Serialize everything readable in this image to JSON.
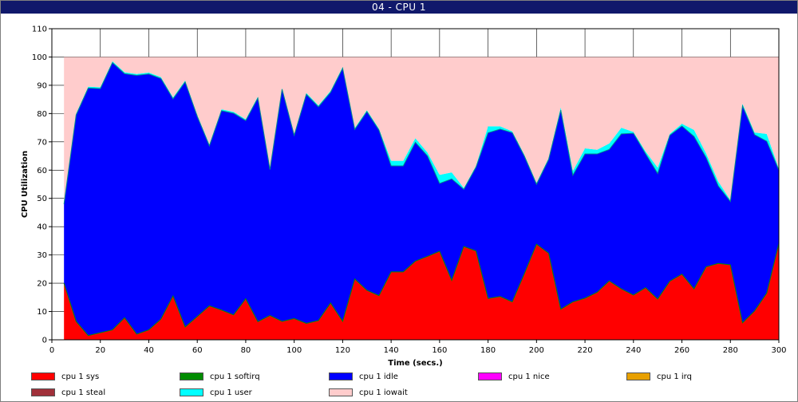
{
  "window": {
    "title": "04 - CPU 1"
  },
  "chart_data": {
    "type": "area",
    "stacked": true,
    "title": "04 - CPU 1",
    "xlabel": "Time (secs.)",
    "ylabel": "CPU Utilization",
    "xlim": [
      0,
      300
    ],
    "ylim": [
      0,
      110
    ],
    "xticks": [
      0,
      20,
      40,
      60,
      80,
      100,
      120,
      140,
      160,
      180,
      200,
      220,
      240,
      260,
      280,
      300
    ],
    "yticks": [
      0,
      10,
      20,
      30,
      40,
      50,
      60,
      70,
      80,
      90,
      100,
      110
    ],
    "grid": true,
    "legend_position": "bottom",
    "x": [
      5,
      10,
      15,
      20,
      25,
      30,
      35,
      40,
      45,
      50,
      55,
      60,
      65,
      70,
      75,
      80,
      85,
      90,
      95,
      100,
      105,
      110,
      115,
      120,
      125,
      130,
      135,
      140,
      145,
      150,
      155,
      160,
      165,
      170,
      175,
      180,
      185,
      190,
      195,
      200,
      205,
      210,
      215,
      220,
      225,
      230,
      235,
      240,
      245,
      250,
      255,
      260,
      265,
      270,
      275,
      280,
      285,
      290,
      295,
      300
    ],
    "series": [
      {
        "name": "cpu 1 sys",
        "color": "#ff0000",
        "values": [
          20,
          6.5,
          1.5,
          2.5,
          3.5,
          7.8,
          2,
          3.5,
          7.3,
          15.5,
          4.5,
          8.2,
          12,
          10.5,
          8.8,
          14.5,
          6.4,
          8.6,
          6.5,
          7.5,
          5.8,
          6.8,
          13,
          6.5,
          21.5,
          17.5,
          15.6,
          24,
          24,
          27.8,
          29.5,
          31.3,
          21,
          33,
          31.4,
          14.6,
          15.3,
          13.4,
          23.4,
          33.8,
          30.6,
          10.8,
          13.4,
          14.7,
          16.8,
          20.8,
          18,
          15.8,
          18.4,
          14.4,
          20.7,
          23.2,
          18,
          25.8,
          27,
          26.5,
          6,
          10.2,
          16.5,
          34
        ]
      },
      {
        "name": "cpu 1 softirq",
        "color": "#008c00",
        "values": [
          0,
          0,
          0,
          0,
          0,
          0,
          0,
          0,
          0,
          0,
          0,
          0,
          0,
          0,
          0,
          0,
          0,
          0,
          0,
          0,
          0,
          0,
          0,
          0,
          0,
          0,
          0,
          0,
          0,
          0,
          0,
          0,
          0,
          0,
          0,
          0,
          0,
          0,
          0,
          0,
          0,
          0,
          0,
          0,
          0,
          0,
          0,
          0,
          0,
          0,
          0,
          0,
          0,
          0,
          0,
          0,
          0,
          0,
          0,
          0
        ]
      },
      {
        "name": "cpu 1 idle",
        "color": "#0000ff",
        "values": [
          28,
          73,
          87.5,
          86.3,
          94.5,
          86.3,
          91.5,
          90.5,
          85.1,
          69.7,
          86.7,
          70.8,
          56.6,
          70.5,
          71.3,
          63,
          79.1,
          51.6,
          82.1,
          64.8,
          81,
          75.6,
          74.5,
          89.5,
          52.9,
          63.2,
          58.5,
          37.5,
          37.5,
          42,
          35.5,
          24,
          35.9,
          20.2,
          29.6,
          58.6,
          59.2,
          59.8,
          41.5,
          21.2,
          33.2,
          70.4,
          44.8,
          51,
          48.9,
          46.5,
          54.8,
          57.2,
          47.4,
          44.4,
          51.6,
          52.4,
          53.9,
          38.6,
          27.4,
          22.4,
          76.7,
          62.3,
          53.7,
          26
        ]
      },
      {
        "name": "cpu 1 nice",
        "color": "#ff00ff",
        "values": [
          0,
          0,
          0,
          0,
          0,
          0,
          0,
          0,
          0,
          0,
          0,
          0,
          0,
          0,
          0,
          0,
          0,
          0,
          0,
          0,
          0,
          0,
          0,
          0,
          0,
          0,
          0,
          0,
          0,
          0,
          0,
          0,
          0,
          0,
          0,
          0,
          0,
          0,
          0,
          0,
          0,
          0,
          0,
          0,
          0,
          0,
          0,
          0,
          0,
          0,
          0,
          0,
          0,
          0,
          0,
          0,
          0,
          0,
          0,
          0
        ]
      },
      {
        "name": "cpu 1 irq",
        "color": "#e8a000",
        "values": [
          0,
          0,
          0,
          0,
          0,
          0,
          0,
          0,
          0,
          0,
          0,
          0,
          0,
          0,
          0,
          0,
          0,
          0,
          0,
          0,
          0,
          0,
          0,
          0,
          0,
          0,
          0,
          0,
          0,
          0,
          0,
          0,
          0,
          0,
          0,
          0,
          0,
          0,
          0,
          0,
          0,
          0,
          0,
          0,
          0,
          0,
          0,
          0,
          0,
          0,
          0,
          0,
          0,
          0,
          0,
          0,
          0,
          0,
          0,
          0
        ]
      },
      {
        "name": "cpu 1 steal",
        "color": "#a0303a",
        "values": [
          0,
          0,
          0,
          0,
          0,
          0,
          0,
          0,
          0,
          0,
          0,
          0,
          0,
          0,
          0,
          0,
          0,
          0,
          0,
          0,
          0,
          0,
          0,
          0,
          0,
          0,
          0,
          0,
          0,
          0,
          0,
          0,
          0,
          0,
          0,
          0,
          0,
          0,
          0,
          0,
          0,
          0,
          0,
          0,
          0,
          0,
          0,
          0,
          0,
          0,
          0,
          0,
          0,
          0,
          0,
          0,
          0,
          0,
          0,
          0
        ]
      },
      {
        "name": "cpu 1 user",
        "color": "#00ffff",
        "values": [
          0.3,
          0.5,
          0.5,
          0.5,
          0.5,
          0.5,
          0.5,
          0.5,
          0.5,
          0.5,
          0.5,
          0.5,
          0.5,
          0.5,
          0.5,
          0.5,
          0.5,
          0.5,
          0.5,
          0.5,
          0.5,
          0.5,
          0.5,
          0.5,
          0.5,
          0.5,
          0.5,
          1.8,
          1.8,
          1.5,
          1.2,
          3,
          2.3,
          0.5,
          0.5,
          2.3,
          1,
          0.5,
          0.5,
          0.5,
          0.5,
          1,
          1.5,
          2,
          1.5,
          2.1,
          2.2,
          0.5,
          0.8,
          2.1,
          0.5,
          0.8,
          2.3,
          1.5,
          1.6,
          0.5,
          0.8,
          0.8,
          2.6,
          0.5
        ]
      },
      {
        "name": "cpu 1 iowait",
        "color": "#ffcccc",
        "values": [
          51.7,
          20,
          10.5,
          10.7,
          1.5,
          5.4,
          6,
          5.5,
          7.1,
          14.3,
          8.3,
          20.5,
          30.9,
          18.5,
          19.4,
          22,
          14,
          39.3,
          10.9,
          27.2,
          12.7,
          17.1,
          12,
          3.5,
          25.1,
          18.8,
          25.4,
          36.7,
          36.7,
          28.7,
          33.8,
          41.7,
          40.8,
          46.3,
          38.5,
          24.5,
          24.5,
          26.3,
          34.6,
          44.5,
          35.7,
          17.8,
          40.3,
          32.3,
          32.8,
          30.6,
          25,
          26.5,
          33.4,
          39.1,
          27.2,
          23.6,
          25.8,
          34.1,
          44,
          50.6,
          16.5,
          26.7,
          27.2,
          39.5
        ]
      }
    ],
    "legend_rows": [
      [
        "cpu 1 sys",
        "cpu 1 softirq",
        "cpu 1 idle",
        "cpu 1 nice",
        "cpu 1 irq"
      ],
      [
        "cpu 1 steal",
        "cpu 1 user",
        "cpu 1 iowait"
      ]
    ]
  }
}
